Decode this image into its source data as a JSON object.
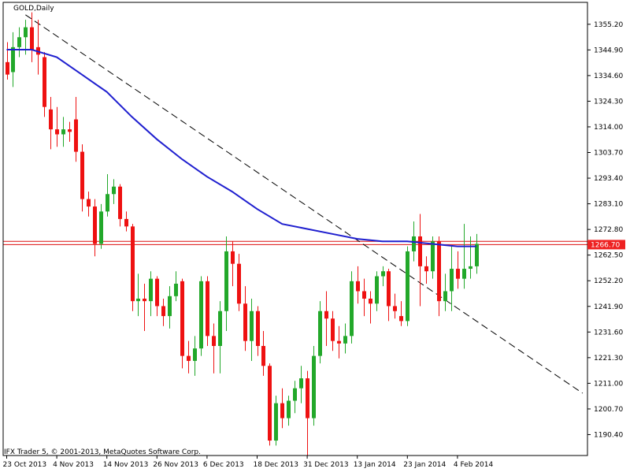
{
  "colors": {
    "background": "#ffffff",
    "bull_candle": "#22a82a",
    "bear_candle": "#ee1111",
    "moving_average": "#1f1fcf",
    "trendline": "#000000",
    "price_line": "#dd1111",
    "axis": "#000000",
    "price_label_bg": "#ee2222",
    "price_label_text": "#ffffff"
  },
  "chart_data": {
    "type": "candlestick",
    "title": "GOLD,Daily",
    "copyright": "IFX Trader 5, © 2001-2013, MetaQuotes Software Corp.",
    "ylim": [
      1182.0,
      1364.0
    ],
    "y_ticks": [
      "1355.20",
      "1344.90",
      "1334.60",
      "1324.30",
      "1314.00",
      "1303.70",
      "1293.40",
      "1283.10",
      "1272.80",
      "1262.50",
      "1252.20",
      "1241.90",
      "1231.60",
      "1221.30",
      "1211.00",
      "1200.70",
      "1190.40"
    ],
    "x_ticks": [
      {
        "label": "23 Oct 2013",
        "index": 0
      },
      {
        "label": "4 Nov 2013",
        "index": 8
      },
      {
        "label": "14 Nov 2013",
        "index": 16
      },
      {
        "label": "26 Nov 2013",
        "index": 24
      },
      {
        "label": "6 Dec 2013",
        "index": 32
      },
      {
        "label": "18 Dec 2013",
        "index": 40
      },
      {
        "label": "31 Dec 2013",
        "index": 48
      },
      {
        "label": "13 Jan 2014",
        "index": 56
      },
      {
        "label": "23 Jan 2014",
        "index": 64
      },
      {
        "label": "4 Feb 2014",
        "index": 72
      }
    ],
    "current_price": 1266.7,
    "current_price_label": "1266.70",
    "current_price_line2": 1268.0,
    "candles": [
      {
        "o": 1340.0,
        "h": 1348.0,
        "l": 1333.0,
        "c": 1335.0
      },
      {
        "o": 1336.0,
        "h": 1352.0,
        "l": 1330.0,
        "c": 1346.0
      },
      {
        "o": 1346.0,
        "h": 1354.0,
        "l": 1342.0,
        "c": 1350.0
      },
      {
        "o": 1350.0,
        "h": 1357.0,
        "l": 1343.0,
        "c": 1354.0
      },
      {
        "o": 1354.0,
        "h": 1360.0,
        "l": 1340.0,
        "c": 1345.0
      },
      {
        "o": 1346.0,
        "h": 1357.0,
        "l": 1335.0,
        "c": 1343.0
      },
      {
        "o": 1342.0,
        "h": 1344.0,
        "l": 1318.0,
        "c": 1322.0
      },
      {
        "o": 1321.0,
        "h": 1326.0,
        "l": 1305.0,
        "c": 1313.0
      },
      {
        "o": 1313.0,
        "h": 1322.0,
        "l": 1306.0,
        "c": 1311.0
      },
      {
        "o": 1311.0,
        "h": 1318.0,
        "l": 1306.0,
        "c": 1313.0
      },
      {
        "o": 1313.0,
        "h": 1316.0,
        "l": 1308.0,
        "c": 1312.0
      },
      {
        "o": 1317.0,
        "h": 1326.0,
        "l": 1300.0,
        "c": 1304.0
      },
      {
        "o": 1304.0,
        "h": 1307.0,
        "l": 1280.0,
        "c": 1285.0
      },
      {
        "o": 1285.0,
        "h": 1288.0,
        "l": 1278.0,
        "c": 1282.0
      },
      {
        "o": 1282.0,
        "h": 1285.0,
        "l": 1262.0,
        "c": 1267.0
      },
      {
        "o": 1267.0,
        "h": 1283.0,
        "l": 1265.0,
        "c": 1280.0
      },
      {
        "o": 1280.0,
        "h": 1295.0,
        "l": 1278.0,
        "c": 1287.0
      },
      {
        "o": 1287.0,
        "h": 1293.0,
        "l": 1283.0,
        "c": 1290.0
      },
      {
        "o": 1290.0,
        "h": 1291.0,
        "l": 1274.0,
        "c": 1277.0
      },
      {
        "o": 1277.0,
        "h": 1280.0,
        "l": 1272.0,
        "c": 1274.0
      },
      {
        "o": 1274.0,
        "h": 1275.0,
        "l": 1240.0,
        "c": 1244.0
      },
      {
        "o": 1244.0,
        "h": 1255.0,
        "l": 1238.0,
        "c": 1245.0
      },
      {
        "o": 1245.0,
        "h": 1251.0,
        "l": 1232.0,
        "c": 1244.0
      },
      {
        "o": 1244.0,
        "h": 1256.0,
        "l": 1238.0,
        "c": 1253.0
      },
      {
        "o": 1253.0,
        "h": 1254.0,
        "l": 1238.0,
        "c": 1242.0
      },
      {
        "o": 1242.0,
        "h": 1245.0,
        "l": 1234.0,
        "c": 1238.0
      },
      {
        "o": 1238.0,
        "h": 1250.0,
        "l": 1233.0,
        "c": 1246.0
      },
      {
        "o": 1246.0,
        "h": 1256.0,
        "l": 1244.0,
        "c": 1251.0
      },
      {
        "o": 1252.0,
        "h": 1253.0,
        "l": 1217.0,
        "c": 1222.0
      },
      {
        "o": 1222.0,
        "h": 1228.0,
        "l": 1215.0,
        "c": 1220.0
      },
      {
        "o": 1220.0,
        "h": 1230.0,
        "l": 1214.0,
        "c": 1225.0
      },
      {
        "o": 1225.0,
        "h": 1254.0,
        "l": 1222.0,
        "c": 1252.0
      },
      {
        "o": 1252.0,
        "h": 1254.0,
        "l": 1226.0,
        "c": 1230.0
      },
      {
        "o": 1230.0,
        "h": 1235.0,
        "l": 1215.0,
        "c": 1226.0
      },
      {
        "o": 1226.0,
        "h": 1244.0,
        "l": 1215.0,
        "c": 1240.0
      },
      {
        "o": 1240.0,
        "h": 1270.0,
        "l": 1232.0,
        "c": 1264.0
      },
      {
        "o": 1264.0,
        "h": 1268.0,
        "l": 1250.0,
        "c": 1259.0
      },
      {
        "o": 1259.0,
        "h": 1263.0,
        "l": 1240.0,
        "c": 1243.0
      },
      {
        "o": 1243.0,
        "h": 1250.0,
        "l": 1224.0,
        "c": 1228.0
      },
      {
        "o": 1228.0,
        "h": 1245.0,
        "l": 1220.0,
        "c": 1240.0
      },
      {
        "o": 1240.0,
        "h": 1242.0,
        "l": 1222.0,
        "c": 1226.0
      },
      {
        "o": 1226.0,
        "h": 1232.0,
        "l": 1214.0,
        "c": 1218.0
      },
      {
        "o": 1218.0,
        "h": 1219.0,
        "l": 1186.0,
        "c": 1188.0
      },
      {
        "o": 1188.0,
        "h": 1206.0,
        "l": 1186.0,
        "c": 1203.0
      },
      {
        "o": 1203.0,
        "h": 1209.0,
        "l": 1193.0,
        "c": 1197.0
      },
      {
        "o": 1197.0,
        "h": 1206.0,
        "l": 1194.0,
        "c": 1204.0
      },
      {
        "o": 1204.0,
        "h": 1212.0,
        "l": 1199.0,
        "c": 1209.0
      },
      {
        "o": 1209.0,
        "h": 1218.0,
        "l": 1203.0,
        "c": 1213.0
      },
      {
        "o": 1213.0,
        "h": 1216.0,
        "l": 1182.0,
        "c": 1197.0
      },
      {
        "o": 1197.0,
        "h": 1226.0,
        "l": 1194.0,
        "c": 1222.0
      },
      {
        "o": 1222.0,
        "h": 1244.0,
        "l": 1219.0,
        "c": 1240.0
      },
      {
        "o": 1240.0,
        "h": 1248.0,
        "l": 1226.0,
        "c": 1237.0
      },
      {
        "o": 1237.0,
        "h": 1240.0,
        "l": 1224.0,
        "c": 1228.0
      },
      {
        "o": 1228.0,
        "h": 1234.0,
        "l": 1221.0,
        "c": 1227.0
      },
      {
        "o": 1227.0,
        "h": 1235.0,
        "l": 1223.0,
        "c": 1230.0
      },
      {
        "o": 1230.0,
        "h": 1256.0,
        "l": 1227.0,
        "c": 1252.0
      },
      {
        "o": 1252.0,
        "h": 1258.0,
        "l": 1243.0,
        "c": 1248.0
      },
      {
        "o": 1248.0,
        "h": 1253.0,
        "l": 1238.0,
        "c": 1245.0
      },
      {
        "o": 1245.0,
        "h": 1248.0,
        "l": 1235.0,
        "c": 1243.0
      },
      {
        "o": 1243.0,
        "h": 1256.0,
        "l": 1240.0,
        "c": 1254.0
      },
      {
        "o": 1254.0,
        "h": 1258.0,
        "l": 1250.0,
        "c": 1256.0
      },
      {
        "o": 1256.0,
        "h": 1257.0,
        "l": 1236.0,
        "c": 1242.0
      },
      {
        "o": 1242.0,
        "h": 1247.0,
        "l": 1237.0,
        "c": 1240.0
      },
      {
        "o": 1238.0,
        "h": 1244.0,
        "l": 1234.0,
        "c": 1236.0
      },
      {
        "o": 1236.0,
        "h": 1266.0,
        "l": 1234.0,
        "c": 1264.0
      },
      {
        "o": 1264.0,
        "h": 1276.0,
        "l": 1260.0,
        "c": 1270.0
      },
      {
        "o": 1270.0,
        "h": 1279.0,
        "l": 1242.0,
        "c": 1258.0
      },
      {
        "o": 1258.0,
        "h": 1262.0,
        "l": 1251.0,
        "c": 1256.0
      },
      {
        "o": 1256.0,
        "h": 1270.0,
        "l": 1253.0,
        "c": 1268.0
      },
      {
        "o": 1268.0,
        "h": 1270.0,
        "l": 1238.0,
        "c": 1244.0
      },
      {
        "o": 1244.0,
        "h": 1255.0,
        "l": 1240.0,
        "c": 1248.0
      },
      {
        "o": 1248.0,
        "h": 1266.0,
        "l": 1240.0,
        "c": 1257.0
      },
      {
        "o": 1257.0,
        "h": 1264.0,
        "l": 1249.0,
        "c": 1253.0
      },
      {
        "o": 1253.0,
        "h": 1275.0,
        "l": 1249.0,
        "c": 1257.0
      },
      {
        "o": 1257.0,
        "h": 1270.0,
        "l": 1253.0,
        "c": 1258.0
      },
      {
        "o": 1258.0,
        "h": 1271.0,
        "l": 1255.0,
        "c": 1267.0
      }
    ],
    "moving_average": [
      {
        "i": 0,
        "v": 1345.0
      },
      {
        "i": 4,
        "v": 1345.0
      },
      {
        "i": 8,
        "v": 1342.0
      },
      {
        "i": 12,
        "v": 1335.0
      },
      {
        "i": 16,
        "v": 1328.0
      },
      {
        "i": 20,
        "v": 1318.0
      },
      {
        "i": 24,
        "v": 1309.0
      },
      {
        "i": 28,
        "v": 1301.0
      },
      {
        "i": 32,
        "v": 1294.0
      },
      {
        "i": 36,
        "v": 1288.0
      },
      {
        "i": 40,
        "v": 1281.0
      },
      {
        "i": 44,
        "v": 1275.0
      },
      {
        "i": 48,
        "v": 1273.0
      },
      {
        "i": 52,
        "v": 1271.0
      },
      {
        "i": 56,
        "v": 1269.0
      },
      {
        "i": 60,
        "v": 1268.0
      },
      {
        "i": 64,
        "v": 1268.0
      },
      {
        "i": 68,
        "v": 1267.0
      },
      {
        "i": 72,
        "v": 1266.0
      },
      {
        "i": 75,
        "v": 1266.0
      }
    ],
    "trendline": {
      "from": {
        "i": 3,
        "v": 1359.0
      },
      "to": {
        "i": 92,
        "v": 1207.0
      }
    }
  }
}
